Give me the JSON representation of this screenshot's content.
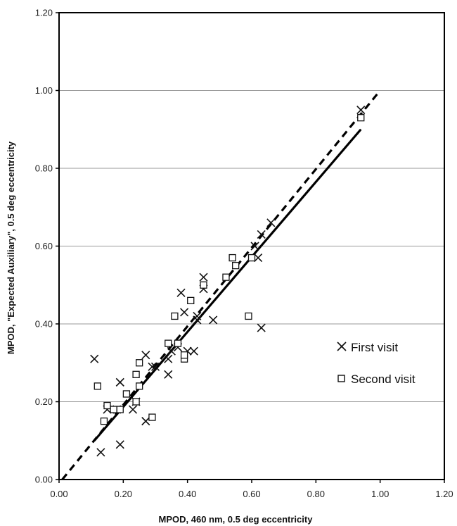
{
  "chart_data": {
    "type": "scatter",
    "xlabel": "MPOD, 460 nm, 0.5 deg eccentricity",
    "ylabel": "MPOD, \"Expected Auxiliary\", 0.5 deg eccentricity",
    "xlim": [
      0,
      1.2
    ],
    "ylim": [
      0,
      1.2
    ],
    "xticks": [
      "0.00",
      "0.20",
      "0.40",
      "0.60",
      "0.80",
      "1.00",
      "1.20"
    ],
    "yticks": [
      "0.00",
      "0.20",
      "0.40",
      "0.60",
      "0.80",
      "1.00",
      "1.20"
    ],
    "grid": "horizontal",
    "legend_position": "right",
    "series": [
      {
        "name": "First visit",
        "marker": "x",
        "points": [
          [
            0.11,
            0.31
          ],
          [
            0.13,
            0.07
          ],
          [
            0.15,
            0.18
          ],
          [
            0.18,
            0.18
          ],
          [
            0.19,
            0.25
          ],
          [
            0.19,
            0.09
          ],
          [
            0.23,
            0.18
          ],
          [
            0.24,
            0.2
          ],
          [
            0.27,
            0.32
          ],
          [
            0.27,
            0.15
          ],
          [
            0.29,
            0.29
          ],
          [
            0.3,
            0.29
          ],
          [
            0.34,
            0.31
          ],
          [
            0.34,
            0.27
          ],
          [
            0.35,
            0.33
          ],
          [
            0.37,
            0.34
          ],
          [
            0.38,
            0.48
          ],
          [
            0.39,
            0.43
          ],
          [
            0.4,
            0.33
          ],
          [
            0.42,
            0.33
          ],
          [
            0.43,
            0.42
          ],
          [
            0.43,
            0.41
          ],
          [
            0.45,
            0.49
          ],
          [
            0.45,
            0.52
          ],
          [
            0.48,
            0.41
          ],
          [
            0.61,
            0.6
          ],
          [
            0.62,
            0.57
          ],
          [
            0.63,
            0.63
          ],
          [
            0.63,
            0.39
          ],
          [
            0.66,
            0.66
          ],
          [
            0.94,
            0.95
          ]
        ]
      },
      {
        "name": "Second visit",
        "marker": "square",
        "points": [
          [
            0.12,
            0.24
          ],
          [
            0.14,
            0.15
          ],
          [
            0.15,
            0.19
          ],
          [
            0.17,
            0.18
          ],
          [
            0.19,
            0.18
          ],
          [
            0.21,
            0.22
          ],
          [
            0.24,
            0.27
          ],
          [
            0.24,
            0.2
          ],
          [
            0.25,
            0.3
          ],
          [
            0.25,
            0.24
          ],
          [
            0.29,
            0.16
          ],
          [
            0.34,
            0.35
          ],
          [
            0.36,
            0.42
          ],
          [
            0.37,
            0.35
          ],
          [
            0.39,
            0.31
          ],
          [
            0.39,
            0.32
          ],
          [
            0.41,
            0.46
          ],
          [
            0.45,
            0.5
          ],
          [
            0.52,
            0.52
          ],
          [
            0.54,
            0.57
          ],
          [
            0.55,
            0.55
          ],
          [
            0.59,
            0.42
          ],
          [
            0.6,
            0.57
          ],
          [
            0.94,
            0.93
          ]
        ]
      }
    ],
    "lines": [
      {
        "style": "solid",
        "x": [
          0.11,
          0.94
        ],
        "y": [
          0.1,
          0.9
        ]
      },
      {
        "style": "dashed",
        "x": [
          0.01,
          1.0
        ],
        "y": [
          0.0,
          1.0
        ]
      }
    ]
  }
}
